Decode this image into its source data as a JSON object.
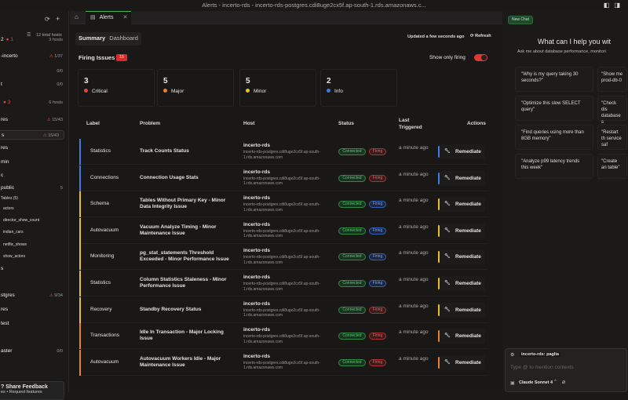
{
  "window": {
    "title": "Alerts - incerto-rds - incerto-rds-postgres.cdi8uge2cx5f.ap-south-1.rds.amazonaws.c..."
  },
  "sidebar": {
    "total_hosts": "12 total hosts",
    "items": [
      {
        "label": "2",
        "badge": "1",
        "right": "3 hosts"
      },
      {
        "label": "-incerto",
        "right": "1/37"
      },
      {
        "label": "",
        "right": "0/0"
      },
      {
        "label": "t",
        "right": "0/0"
      },
      {
        "label": "",
        "badge": "3",
        "right": "6 hosts"
      },
      {
        "label": "res",
        "right": "15/43"
      },
      {
        "label": "s",
        "right": "15/43"
      },
      {
        "label": "res"
      },
      {
        "label": "min"
      },
      {
        "label": "c"
      },
      {
        "label": "public",
        "right": "5"
      },
      {
        "label": "Tables (5)"
      },
      {
        "label": "actors"
      },
      {
        "label": "director_show_count"
      },
      {
        "label": "indian_cars"
      },
      {
        "label": "netflix_shows"
      },
      {
        "label": "show_actors"
      },
      {
        "label": "s"
      },
      {
        "label": "stgres",
        "right": "9/34"
      },
      {
        "label": "res"
      },
      {
        "label": "test"
      },
      {
        "label": "aster",
        "right": "0/0"
      }
    ],
    "feedback": {
      "title": "? Share Feedback",
      "sub": "es • Request features"
    }
  },
  "tabs": {
    "active": "Alerts"
  },
  "main": {
    "seg": [
      "Summary",
      "Dashboard"
    ],
    "updated": "Updated a few seconds ago",
    "refresh": "Refresh",
    "firing_title": "Firing Issues",
    "firing_count": "15",
    "show_only_firing": "Show only firing",
    "show_only_firing_on": true,
    "cards": [
      {
        "n": "3",
        "label": "Critical",
        "color": "#e04444"
      },
      {
        "n": "5",
        "label": "Major",
        "color": "#e8822a"
      },
      {
        "n": "5",
        "label": "Minor",
        "color": "#e8c12a"
      },
      {
        "n": "2",
        "label": "Info",
        "color": "#3f7be0"
      }
    ],
    "columns": [
      "Label",
      "Problem",
      "Host",
      "Status",
      "Last Triggered",
      "Actions"
    ],
    "rows": [
      {
        "label": "Statistics",
        "problem": "Track Counts Status",
        "host": "incerto-rds",
        "host_sub": "incerto-rds-postgres.cdi8uge2cx5f.ap-south-1.rds.amazonaws.com",
        "status": "Connected",
        "firing": "Firing",
        "firing_color": "red",
        "severity_color": "#3f7be0",
        "last": "a minute ago",
        "action": "Remediate"
      },
      {
        "label": "Connections",
        "problem": "Connection Usage Stats",
        "host": "incerto-rds",
        "host_sub": "incerto-rds-postgres.cdi8uge2cx5f.ap-south-1.rds.amazonaws.com",
        "status": "Connected",
        "firing": "Firing",
        "firing_color": "red",
        "severity_color": "#3f7be0",
        "last": "a minute ago",
        "action": "Remediate"
      },
      {
        "label": "Schema",
        "problem": "Tables Without Primary Key - Minor Data Integrity Issue",
        "host": "incerto-rds",
        "host_sub": "incerto-rds-postgres.cdi8uge2cx5f.ap-south-1.rds.amazonaws.com",
        "status": "Connected",
        "firing": "Firing",
        "firing_color": "blue",
        "severity_color": "#e8c12a",
        "last": "a minute ago",
        "action": "Remediate"
      },
      {
        "label": "Autovacuum",
        "problem": "Vacuum Analyze Timing - Minor Maintenance Issue",
        "host": "incerto-rds",
        "host_sub": "incerto-rds-postgres.cdi8uge2cx5f.ap-south-1.rds.amazonaws.com",
        "status": "Connected",
        "firing": "Firing",
        "firing_color": "blue",
        "severity_color": "#e8c12a",
        "last": "a minute ago",
        "action": "Remediate"
      },
      {
        "label": "Monitoring",
        "problem": "pg_stat_statements Threshold Exceeded - Minor Performance Issue",
        "host": "incerto-rds",
        "host_sub": "incerto-rds-postgres.cdi8uge2cx5f.ap-south-1.rds.amazonaws.com",
        "status": "Connected",
        "firing": "Firing",
        "firing_color": "blue",
        "severity_color": "#e8c12a",
        "last": "a minute ago",
        "action": "Remediate"
      },
      {
        "label": "Statistics",
        "problem": "Column Statistics Staleness - Minor Performance Issue",
        "host": "incerto-rds",
        "host_sub": "incerto-rds-postgres.cdi8uge2cx5f.ap-south-1.rds.amazonaws.com",
        "status": "Connected",
        "firing": "Firing",
        "firing_color": "blue",
        "severity_color": "#e8c12a",
        "last": "a minute ago",
        "action": "Remediate"
      },
      {
        "label": "Recovery",
        "problem": "Standby Recovery Status",
        "host": "incerto-rds",
        "host_sub": "incerto-rds-postgres.cdi8uge2cx5f.ap-south-1.rds.amazonaws.com",
        "status": "Connected",
        "firing": "Firing",
        "firing_color": "red",
        "severity_color": "#e8c12a",
        "last": "a minute ago",
        "action": "Remediate"
      },
      {
        "label": "Transactions",
        "problem": "Idle In Transaction - Major Locking Issue",
        "host": "incerto-rds",
        "host_sub": "incerto-rds-postgres.cdi8uge2cx5f.ap-south-1.rds.amazonaws.com",
        "status": "Connected",
        "firing": "Firing",
        "firing_color": "red",
        "severity_color": "#e8822a",
        "last": "a minute ago",
        "action": "Remediate"
      },
      {
        "label": "Autovacuum",
        "problem": "Autovacuum Workers Idle - Major Maintenance Issue",
        "host": "incerto-rds",
        "host_sub": "incerto-rds-postgres.cdi8uge2cx5f.ap-south-1.rds.amazonaws.com",
        "status": "Connected",
        "firing": "Firing",
        "firing_color": "red",
        "severity_color": "#e8822a",
        "last": "a minute ago",
        "action": "Remediate"
      }
    ]
  },
  "chat": {
    "new_chat": "New Chat",
    "heading": "What can I help you wit",
    "sub": "Ask me about database performance, monitori",
    "suggestions": [
      "\"Why is my query taking 30 seconds?\"",
      "\"Show me prod-db-0",
      "\"Optimize this slow SELECT query\"",
      "\"Check dis database s",
      "\"Find queries using more than 8GB memory\"",
      "\"Restart th service saf",
      "\"Analyze p99 latency trends this week\"",
      "\"Create an table\""
    ],
    "context": "incerto-rds: paglia",
    "placeholder": "Type @ to mention contexts",
    "model": "Claude Sonnet 4"
  }
}
